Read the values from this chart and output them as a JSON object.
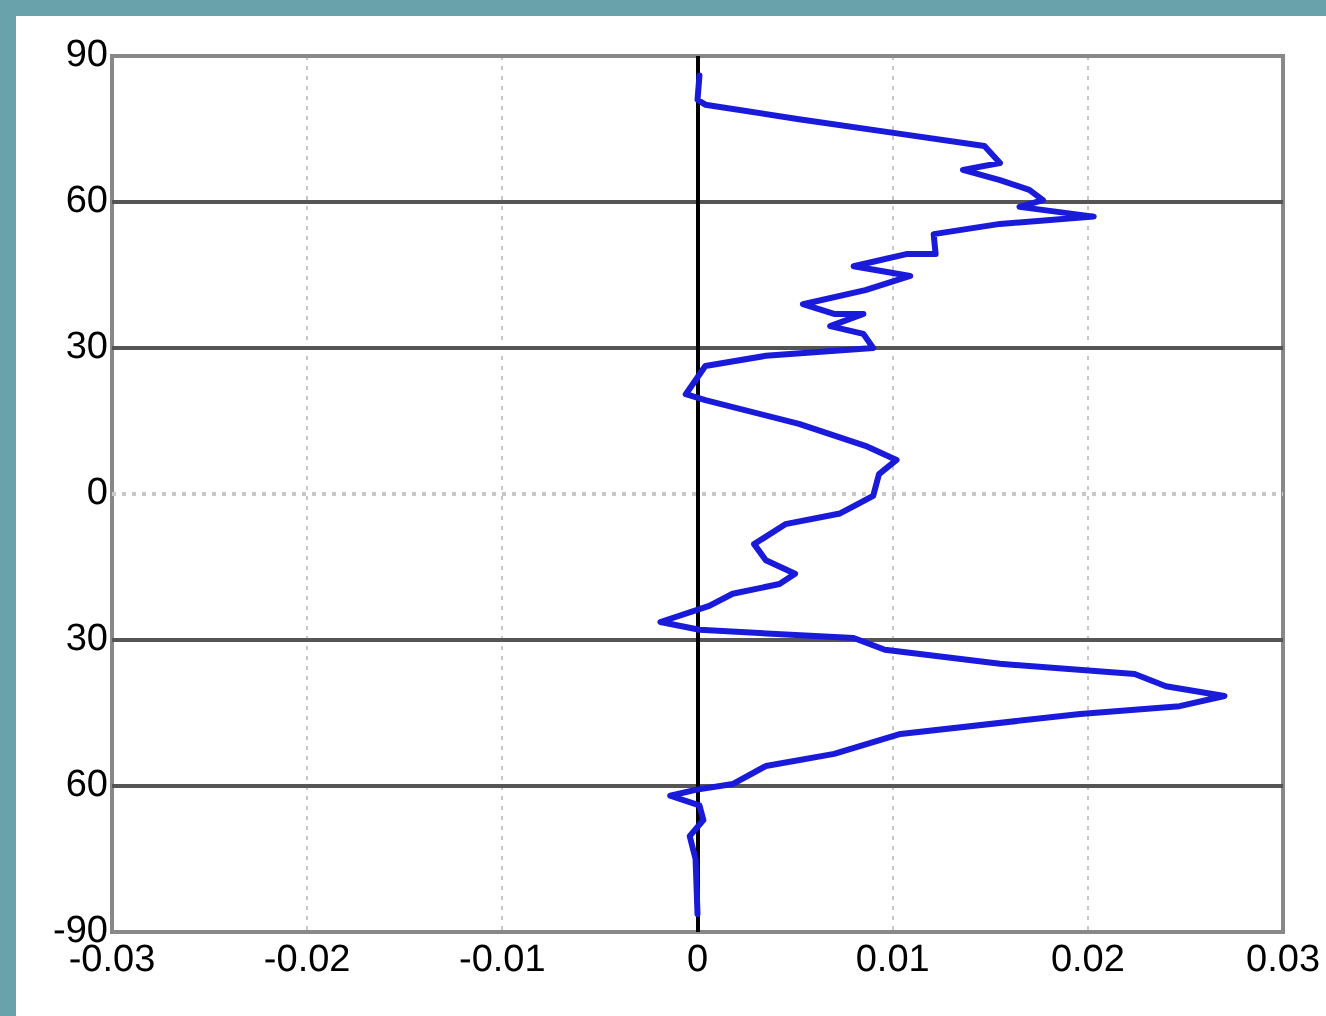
{
  "chart_data": {
    "type": "line",
    "xlim": [
      -0.03,
      0.03
    ],
    "xticks": [
      -0.03,
      -0.02,
      -0.01,
      0,
      0.01,
      0.02,
      0.03
    ],
    "ylim": [
      -90,
      90
    ],
    "yticks": [
      {
        "value": -90,
        "label": "-90"
      },
      {
        "value": -60,
        "label": "60"
      },
      {
        "value": -30,
        "label": "30"
      },
      0,
      30,
      60,
      90
    ],
    "grid": "x",
    "legend": false,
    "marker": "none",
    "line_style": "solid",
    "ref_lines": [
      {
        "axis": "y",
        "value": 60,
        "color": "#555555"
      },
      {
        "axis": "y",
        "value": 30,
        "color": "#555555"
      },
      {
        "axis": "y",
        "value": 0,
        "color": "#c8c8c8",
        "line_style": "dotted"
      },
      {
        "axis": "y",
        "value": -30,
        "color": "#555555"
      },
      {
        "axis": "y",
        "value": -60,
        "color": "#555555"
      },
      {
        "axis": "x",
        "value": 0,
        "color": "#000000"
      }
    ],
    "series": [
      {
        "color": "#1a1adb",
        "x": [
          0.0001,
          0,
          0.0004,
          0.0052,
          0.0104,
          0.0147,
          0.0155,
          0.0136,
          0.0155,
          0.017,
          0.0177,
          0.0165,
          0.0203,
          0.0155,
          0.0121,
          0.0122,
          0.0107,
          0.008,
          0.0109,
          0.0086,
          0.0054,
          0.007,
          0.0085,
          0.0068,
          0.0085,
          0.009,
          0.0035,
          0.0004,
          -0.0006,
          0.0004,
          0.0052,
          0.0086,
          0.0102,
          0.0093,
          0.009,
          0.0073,
          0.0045,
          0.0029,
          0.0035,
          0.005,
          0.0042,
          0.0018,
          0.0006,
          -0.0019,
          0.0001,
          0.008,
          0.0096,
          0.0155,
          0.0224,
          0.024,
          0.027,
          0.0247,
          0.0196,
          0.0104,
          0.007,
          0.0035,
          0.0018,
          -0.0001,
          -0.0014,
          0.0001,
          0.0003,
          -0.0004,
          -0.0001,
          0
        ],
        "values": [
          86,
          81,
          80,
          77,
          74,
          71.5,
          68,
          66.6,
          64.5,
          62.5,
          60.4,
          59,
          57,
          55.5,
          53.4,
          49.3,
          49.3,
          46.8,
          44.8,
          41.9,
          39,
          37,
          37,
          34.5,
          32.9,
          30,
          28.4,
          26.3,
          20.5,
          19.3,
          14.4,
          9.9,
          7,
          4.1,
          -0.4,
          -4,
          -6.2,
          -10.3,
          -13.6,
          -16.4,
          -18.5,
          -20.5,
          -23,
          -26.3,
          -27.9,
          -29.6,
          -32,
          -34.9,
          -37,
          -39.5,
          -41.5,
          -43.6,
          -45.2,
          -49.3,
          -53.4,
          -55.9,
          -59.6,
          -60.8,
          -62,
          -64,
          -67,
          -70.3,
          -75,
          -86.3
        ]
      }
    ]
  }
}
